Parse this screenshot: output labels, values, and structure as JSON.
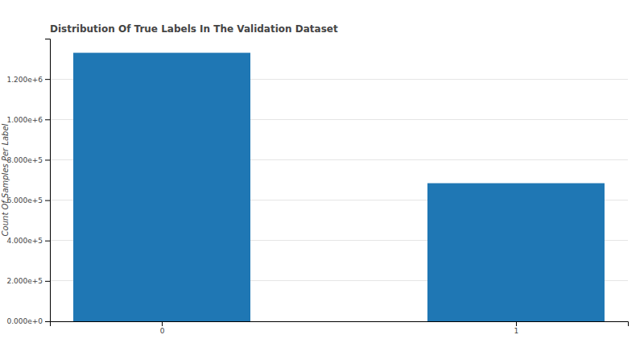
{
  "chart_data": {
    "type": "bar",
    "title": "Distribution Of True Labels In The Validation Dataset",
    "y_label": "Count Of Samples Per Label",
    "categories": [
      "0",
      "1"
    ],
    "values": [
      1330000,
      684000
    ],
    "color": "#1f77b4",
    "ylim": [
      0,
      1400000
    ],
    "yticks": [
      {
        "value": 0,
        "label": "0.000e+0"
      },
      {
        "value": 200000,
        "label": "2.000e+5"
      },
      {
        "value": 400000,
        "label": "4.000e+5"
      },
      {
        "value": 600000,
        "label": "6.000e+5"
      },
      {
        "value": 800000,
        "label": "8.000e+5"
      },
      {
        "value": 1000000,
        "label": "1.000e+6"
      },
      {
        "value": 1200000,
        "label": "1.200e+6"
      }
    ],
    "grid": true
  }
}
